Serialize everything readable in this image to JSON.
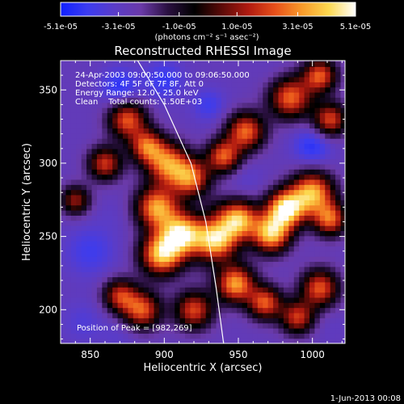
{
  "chart_data": {
    "type": "heatmap",
    "title": "Reconstructed RHESSI Image",
    "xlabel": "Heliocentric X (arcsec)",
    "ylabel": "Heliocentric Y (arcsec)",
    "xlim": [
      830,
      1022
    ],
    "ylim": [
      177,
      370
    ],
    "xticks": [
      850,
      900,
      950,
      1000
    ],
    "yticks": [
      200,
      250,
      300,
      350
    ],
    "colorbar": {
      "range": [
        -5.1e-05,
        5.1e-05
      ],
      "tick_labels": [
        "-5.1e-05",
        "-3.1e-05",
        "-1.0e-05",
        "1.0e-05",
        "3.1e-05",
        "5.1e-05"
      ],
      "unit_label": "(photons cm⁻² s⁻¹ asec⁻²)",
      "colors": [
        "#1020ff",
        "#3c3cf0",
        "#5a3cc8",
        "#6a3aa8",
        "#2a1040",
        "#000000",
        "#5a0a08",
        "#b01a10",
        "#e8501a",
        "#f89a2a",
        "#fcd850",
        "#ffffff"
      ]
    },
    "annotations": [
      "24-Apr-2003 09:00:50.000 to 09:06:50.000",
      "Detectors: 4F 5F 6F 7F 8F, Att 0",
      "Energy Range: 12.0 - 25.0 keV",
      "Clean    Total counts: 1.50E+03"
    ],
    "peak": {
      "label": "Position of Peak = [982,269]",
      "x": 982,
      "y": 269
    },
    "limb_curve": [
      [
        882,
        370
      ],
      [
        900,
        340
      ],
      [
        918,
        300
      ],
      [
        928,
        260
      ],
      [
        935,
        215
      ],
      [
        940,
        177
      ]
    ],
    "features": [
      {
        "x": 875,
        "y": 330,
        "v": 0.55,
        "s": 9
      },
      {
        "x": 888,
        "y": 312,
        "v": 0.5,
        "s": 8
      },
      {
        "x": 902,
        "y": 300,
        "v": 0.65,
        "s": 10
      },
      {
        "x": 918,
        "y": 290,
        "v": 0.6,
        "s": 9
      },
      {
        "x": 940,
        "y": 305,
        "v": 0.55,
        "s": 8
      },
      {
        "x": 955,
        "y": 322,
        "v": 0.6,
        "s": 9
      },
      {
        "x": 985,
        "y": 345,
        "v": 0.6,
        "s": 10
      },
      {
        "x": 1005,
        "y": 360,
        "v": 0.55,
        "s": 8
      },
      {
        "x": 1012,
        "y": 330,
        "v": 0.5,
        "s": 8
      },
      {
        "x": 895,
        "y": 270,
        "v": 0.75,
        "s": 10
      },
      {
        "x": 912,
        "y": 252,
        "v": 0.9,
        "s": 10
      },
      {
        "x": 898,
        "y": 238,
        "v": 0.85,
        "s": 10
      },
      {
        "x": 935,
        "y": 248,
        "v": 0.9,
        "s": 10
      },
      {
        "x": 950,
        "y": 262,
        "v": 0.8,
        "s": 9
      },
      {
        "x": 982,
        "y": 269,
        "v": 1.0,
        "s": 9
      },
      {
        "x": 972,
        "y": 252,
        "v": 0.85,
        "s": 9
      },
      {
        "x": 1000,
        "y": 280,
        "v": 0.8,
        "s": 10
      },
      {
        "x": 1012,
        "y": 262,
        "v": 0.55,
        "s": 8
      },
      {
        "x": 948,
        "y": 218,
        "v": 0.75,
        "s": 9
      },
      {
        "x": 968,
        "y": 205,
        "v": 0.55,
        "s": 8
      },
      {
        "x": 885,
        "y": 200,
        "v": 0.55,
        "s": 9
      },
      {
        "x": 870,
        "y": 210,
        "v": 0.4,
        "s": 8
      },
      {
        "x": 1005,
        "y": 215,
        "v": 0.55,
        "s": 9
      },
      {
        "x": 990,
        "y": 195,
        "v": 0.45,
        "s": 8
      },
      {
        "x": 920,
        "y": 200,
        "v": 0.5,
        "s": 9
      },
      {
        "x": 860,
        "y": 300,
        "v": 0.45,
        "s": 8
      },
      {
        "x": 840,
        "y": 275,
        "v": 0.3,
        "s": 7
      },
      {
        "x": 870,
        "y": 352,
        "v": -0.8,
        "s": 9
      },
      {
        "x": 900,
        "y": 357,
        "v": -0.75,
        "s": 9
      },
      {
        "x": 930,
        "y": 340,
        "v": -0.7,
        "s": 8
      },
      {
        "x": 975,
        "y": 360,
        "v": -0.5,
        "s": 8
      },
      {
        "x": 1000,
        "y": 312,
        "v": -0.8,
        "s": 9
      },
      {
        "x": 955,
        "y": 290,
        "v": -0.55,
        "s": 8
      },
      {
        "x": 960,
        "y": 240,
        "v": -0.45,
        "s": 7
      },
      {
        "x": 935,
        "y": 270,
        "v": -0.3,
        "s": 6
      },
      {
        "x": 850,
        "y": 240,
        "v": -0.7,
        "s": 12
      },
      {
        "x": 865,
        "y": 265,
        "v": -0.5,
        "s": 9
      },
      {
        "x": 845,
        "y": 192,
        "v": -0.6,
        "s": 10
      },
      {
        "x": 870,
        "y": 183,
        "v": -0.55,
        "s": 9
      },
      {
        "x": 925,
        "y": 228,
        "v": -0.4,
        "s": 7
      },
      {
        "x": 990,
        "y": 228,
        "v": -0.45,
        "s": 8
      },
      {
        "x": 1010,
        "y": 190,
        "v": -0.5,
        "s": 9
      },
      {
        "x": 925,
        "y": 365,
        "v": -0.45,
        "s": 8
      },
      {
        "x": 845,
        "y": 330,
        "v": -0.45,
        "s": 9
      }
    ]
  },
  "footer": {
    "date_stamp": "1-Jun-2013 00:08"
  }
}
